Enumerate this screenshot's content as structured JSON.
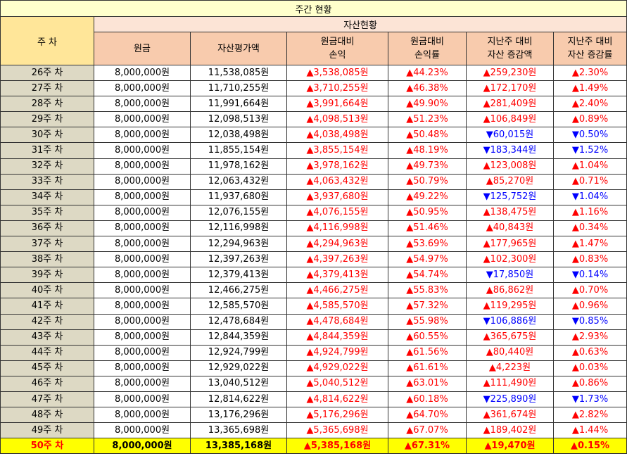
{
  "header": {
    "title": "주간 현황",
    "week_label": "주 차",
    "group": "자산현황",
    "columns": [
      "원금",
      "자산평가액",
      "원금대비\n손익",
      "원금대비\n손익률",
      "지난주 대비\n자산 증감액",
      "지난주 대비\n자산 증감률"
    ]
  },
  "table": {
    "rows": [
      [
        "26주 차",
        "8,000,000원",
        "11,538,085원",
        "▲3,538,085원",
        "▲44.23%",
        "▲259,230원",
        "▲2.30%"
      ],
      [
        "27주 차",
        "8,000,000원",
        "11,710,255원",
        "▲3,710,255원",
        "▲46.38%",
        "▲172,170원",
        "▲1.49%"
      ],
      [
        "28주 차",
        "8,000,000원",
        "11,991,664원",
        "▲3,991,664원",
        "▲49.90%",
        "▲281,409원",
        "▲2.40%"
      ],
      [
        "29주 차",
        "8,000,000원",
        "12,098,513원",
        "▲4,098,513원",
        "▲51.23%",
        "▲106,849원",
        "▲0.89%"
      ],
      [
        "30주 차",
        "8,000,000원",
        "12,038,498원",
        "▲4,038,498원",
        "▲50.48%",
        "▼60,015원",
        "▼0.50%"
      ],
      [
        "31주 차",
        "8,000,000원",
        "11,855,154원",
        "▲3,855,154원",
        "▲48.19%",
        "▼183,344원",
        "▼1.52%"
      ],
      [
        "32주 차",
        "8,000,000원",
        "11,978,162원",
        "▲3,978,162원",
        "▲49.73%",
        "▲123,008원",
        "▲1.04%"
      ],
      [
        "33주 차",
        "8,000,000원",
        "12,063,432원",
        "▲4,063,432원",
        "▲50.79%",
        "▲85,270원",
        "▲0.71%"
      ],
      [
        "34주 차",
        "8,000,000원",
        "11,937,680원",
        "▲3,937,680원",
        "▲49.22%",
        "▼125,752원",
        "▼1.04%"
      ],
      [
        "35주 차",
        "8,000,000원",
        "12,076,155원",
        "▲4,076,155원",
        "▲50.95%",
        "▲138,475원",
        "▲1.16%"
      ],
      [
        "36주 차",
        "8,000,000원",
        "12,116,998원",
        "▲4,116,998원",
        "▲51.46%",
        "▲40,843원",
        "▲0.34%"
      ],
      [
        "37주 차",
        "8,000,000원",
        "12,294,963원",
        "▲4,294,963원",
        "▲53.69%",
        "▲177,965원",
        "▲1.47%"
      ],
      [
        "38주 차",
        "8,000,000원",
        "12,397,263원",
        "▲4,397,263원",
        "▲54.97%",
        "▲102,300원",
        "▲0.83%"
      ],
      [
        "39주 차",
        "8,000,000원",
        "12,379,413원",
        "▲4,379,413원",
        "▲54.74%",
        "▼17,850원",
        "▼0.14%"
      ],
      [
        "40주 차",
        "8,000,000원",
        "12,466,275원",
        "▲4,466,275원",
        "▲55.83%",
        "▲86,862원",
        "▲0.70%"
      ],
      [
        "41주 차",
        "8,000,000원",
        "12,585,570원",
        "▲4,585,570원",
        "▲57.32%",
        "▲119,295원",
        "▲0.96%"
      ],
      [
        "42주 차",
        "8,000,000원",
        "12,478,684원",
        "▲4,478,684원",
        "▲55.98%",
        "▼106,886원",
        "▼0.85%"
      ],
      [
        "43주 차",
        "8,000,000원",
        "12,844,359원",
        "▲4,844,359원",
        "▲60.55%",
        "▲365,675원",
        "▲2.93%"
      ],
      [
        "44주 차",
        "8,000,000원",
        "12,924,799원",
        "▲4,924,799원",
        "▲61.56%",
        "▲80,440원",
        "▲0.63%"
      ],
      [
        "45주 차",
        "8,000,000원",
        "12,929,022원",
        "▲4,929,022원",
        "▲61.61%",
        "▲4,223원",
        "▲0.03%"
      ],
      [
        "46주 차",
        "8,000,000원",
        "13,040,512원",
        "▲5,040,512원",
        "▲63.01%",
        "▲111,490원",
        "▲0.86%"
      ],
      [
        "47주 차",
        "8,000,000원",
        "12,814,622원",
        "▲4,814,622원",
        "▲60.18%",
        "▼225,890원",
        "▼1.73%"
      ],
      [
        "48주 차",
        "8,000,000원",
        "13,176,296원",
        "▲5,176,296원",
        "▲64.70%",
        "▲361,674원",
        "▲2.82%"
      ],
      [
        "49주 차",
        "8,000,000원",
        "13,365,698원",
        "▲5,365,698원",
        "▲67.07%",
        "▲189,402원",
        "▲1.44%"
      ],
      [
        "50주 차",
        "8,000,000원",
        "13,385,168원",
        "▲5,385,168원",
        "▲67.31%",
        "▲19,470원",
        "▲0.15%"
      ]
    ]
  }
}
